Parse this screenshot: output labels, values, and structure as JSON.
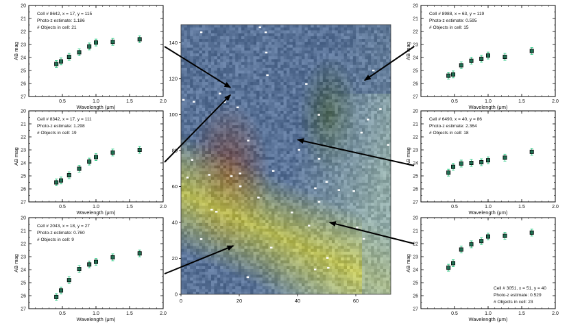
{
  "chart_data": [
    {
      "type": "scatter",
      "panel": "left-top",
      "annotations": [
        "Cell # 8642, x = 17, y = 115",
        "Photo-z estimate: 1.186",
        "# Objects in cell: 21"
      ],
      "xlabel": "Wavelength (μm)",
      "ylabel": "AB mag",
      "xlim": [
        0.0,
        2.0
      ],
      "ylim": [
        27,
        20
      ],
      "xticks": [
        "0.5",
        "1.0",
        "1.5",
        "2.0"
      ],
      "yticks": [
        "20",
        "21",
        "22",
        "23",
        "24",
        "25",
        "26",
        "27"
      ],
      "x": [
        0.41,
        0.48,
        0.6,
        0.75,
        0.9,
        1.0,
        1.25,
        1.65
      ],
      "y": [
        24.5,
        24.3,
        23.95,
        23.6,
        23.15,
        22.85,
        22.8,
        22.6
      ],
      "grid": false
    },
    {
      "type": "scatter",
      "panel": "left-middle",
      "annotations": [
        "Cell # 8342, x = 17, y = 111",
        "Photo-z estimate: 1.298",
        "# Objects in cell: 19"
      ],
      "xlabel": "Wavelength (μm)",
      "ylabel": "AB mag",
      "xlim": [
        0.0,
        2.0
      ],
      "ylim": [
        27,
        20
      ],
      "xticks": [
        "0.5",
        "1.0",
        "1.5",
        "2.0"
      ],
      "yticks": [
        "20",
        "21",
        "22",
        "23",
        "24",
        "25",
        "26",
        "27"
      ],
      "x": [
        0.41,
        0.48,
        0.6,
        0.75,
        0.9,
        1.0,
        1.25,
        1.65
      ],
      "y": [
        25.5,
        25.35,
        24.95,
        24.45,
        23.9,
        23.55,
        23.2,
        23.0
      ],
      "grid": false
    },
    {
      "type": "scatter",
      "panel": "left-bottom",
      "annotations": [
        "Cell # 2043, x = 18, y = 27",
        "Photo-z estimate: 0.760",
        "# Objects in cell: 9"
      ],
      "xlabel": "Wavelength (μm)",
      "ylabel": "AB mag",
      "xlim": [
        0.0,
        2.0
      ],
      "ylim": [
        27,
        20
      ],
      "xticks": [
        "0.5",
        "1.0",
        "1.5",
        "2.0"
      ],
      "yticks": [
        "20",
        "21",
        "22",
        "23",
        "24",
        "25",
        "26",
        "27"
      ],
      "x": [
        0.41,
        0.48,
        0.6,
        0.75,
        0.9,
        1.0,
        1.25,
        1.65
      ],
      "y": [
        26.1,
        25.6,
        24.8,
        23.95,
        23.6,
        23.4,
        23.05,
        22.75
      ],
      "grid": false
    },
    {
      "type": "scatter",
      "panel": "right-top",
      "annotations": [
        "Cell # 8988, x = 63, y = 119",
        "Photo-z estimate: 0.595",
        "# Objects in cell: 15"
      ],
      "xlabel": "Wavelength (μm)",
      "ylabel": "AB mag",
      "xlim": [
        0.0,
        2.0
      ],
      "ylim": [
        27,
        20
      ],
      "xticks": [
        "0.5",
        "1.0",
        "1.5",
        "2.0"
      ],
      "yticks": [
        "20",
        "21",
        "22",
        "23",
        "24",
        "25",
        "26",
        "27"
      ],
      "x": [
        0.41,
        0.48,
        0.6,
        0.75,
        0.9,
        1.0,
        1.25,
        1.65
      ],
      "y": [
        25.4,
        25.3,
        24.6,
        24.25,
        24.1,
        23.85,
        23.95,
        23.5
      ],
      "grid": false
    },
    {
      "type": "scatter",
      "panel": "right-middle",
      "annotations": [
        "Cell # 6490, x = 40, y = 86",
        "Photo-z estimate: 2.364",
        "# Objects in cell: 18"
      ],
      "xlabel": "Wavelength (μm)",
      "ylabel": "AB mag",
      "xlim": [
        0.0,
        2.0
      ],
      "ylim": [
        27,
        20
      ],
      "xticks": [
        "0.5",
        "1.0",
        "1.5",
        "2.0"
      ],
      "yticks": [
        "20",
        "21",
        "22",
        "23",
        "24",
        "25",
        "26",
        "27"
      ],
      "x": [
        0.41,
        0.48,
        0.6,
        0.75,
        0.9,
        1.0,
        1.25,
        1.65
      ],
      "y": [
        24.75,
        24.3,
        24.05,
        24.0,
        23.95,
        23.8,
        23.6,
        23.15
      ],
      "grid": false
    },
    {
      "type": "scatter",
      "panel": "right-bottom",
      "annotations": [
        "Cell # 3051, x = 51, y = 40",
        "Photo-z estimate: 0.529",
        "# Objects in cell: 23"
      ],
      "xlabel": "Wavelength (μm)",
      "ylabel": "AB mag",
      "xlim": [
        0.0,
        2.0
      ],
      "ylim": [
        27,
        20
      ],
      "xticks": [
        "0.5",
        "1.0",
        "1.5",
        "2.0"
      ],
      "yticks": [
        "20",
        "21",
        "22",
        "23",
        "24",
        "25",
        "26",
        "27"
      ],
      "x": [
        0.41,
        0.48,
        0.6,
        0.75,
        0.9,
        1.0,
        1.25,
        1.65
      ],
      "y": [
        23.85,
        23.5,
        22.45,
        22.05,
        21.8,
        21.45,
        21.4,
        21.15
      ],
      "grid": false
    },
    {
      "type": "heatmap",
      "panel": "center-map",
      "xlim": [
        0,
        72
      ],
      "ylim": [
        0,
        150
      ],
      "xticks": [
        "0",
        "20",
        "40",
        "60"
      ],
      "yticks": [
        "0",
        "20",
        "40",
        "60",
        "80",
        "100",
        "120",
        "140"
      ],
      "description_colors": [
        "#5a7398",
        "#7f4636",
        "#c6c64a",
        "#9fb9ad",
        "#3d5530"
      ],
      "arrows": [
        {
          "from_panel": "left-top",
          "to": [
            17,
            115
          ]
        },
        {
          "from_panel": "left-middle",
          "to": [
            17,
            111
          ]
        },
        {
          "from_panel": "left-bottom",
          "to": [
            18,
            27
          ]
        },
        {
          "from_panel": "right-top",
          "to": [
            63,
            119
          ]
        },
        {
          "from_panel": "right-middle",
          "to": [
            40,
            86
          ]
        },
        {
          "from_panel": "right-bottom",
          "to": [
            51,
            40
          ]
        }
      ]
    }
  ],
  "colors": {
    "marker_fill": "#1f6f52",
    "marker_edge": "#000000",
    "errorbar": "#3fcf8f",
    "arrow": "#000000"
  }
}
